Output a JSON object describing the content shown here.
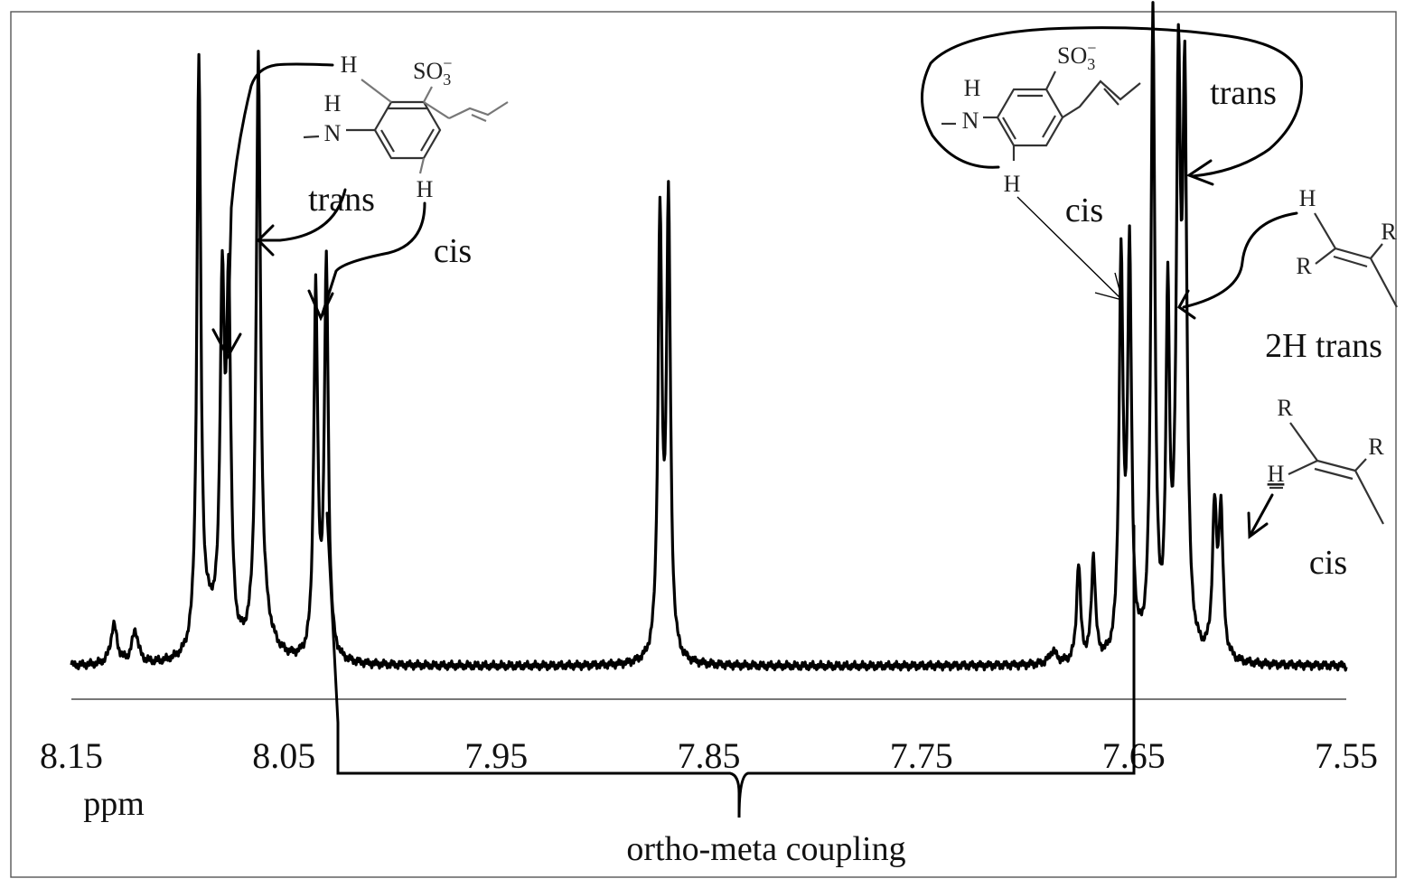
{
  "chart_data": {
    "type": "line",
    "xlabel": "ppm",
    "xlim": [
      8.15,
      7.55
    ],
    "x_reversed": true,
    "x_ticks": [
      "8.15",
      "8.05",
      "7.95",
      "7.85",
      "7.75",
      "7.65",
      "7.55"
    ],
    "y_axis_shown": false,
    "grid": false,
    "baseline": 0.02,
    "peaks": [
      {
        "x": 8.13,
        "h": 0.06,
        "w": 0.0018
      },
      {
        "x": 8.12,
        "h": 0.05,
        "w": 0.0018
      },
      {
        "x": 8.09,
        "h": 0.9,
        "w": 0.0011
      },
      {
        "x": 8.085,
        "h": 0.05,
        "w": 0.0045
      },
      {
        "x": 8.079,
        "h": 0.53,
        "w": 0.0012
      },
      {
        "x": 8.076,
        "h": 0.53,
        "w": 0.0012
      },
      {
        "x": 8.062,
        "h": 0.88,
        "w": 0.0012
      },
      {
        "x": 8.06,
        "h": 0.05,
        "w": 0.0055
      },
      {
        "x": 8.035,
        "h": 0.56,
        "w": 0.0011
      },
      {
        "x": 8.03,
        "h": 0.6,
        "w": 0.0011
      },
      {
        "x": 7.873,
        "h": 0.67,
        "w": 0.0011
      },
      {
        "x": 7.869,
        "h": 0.69,
        "w": 0.0011
      },
      {
        "x": 7.688,
        "h": 0.02,
        "w": 0.002
      },
      {
        "x": 7.676,
        "h": 0.15,
        "w": 0.0011
      },
      {
        "x": 7.669,
        "h": 0.16,
        "w": 0.0011
      },
      {
        "x": 7.656,
        "h": 0.6,
        "w": 0.0011
      },
      {
        "x": 7.652,
        "h": 0.61,
        "w": 0.0011
      },
      {
        "x": 7.641,
        "h": 0.98,
        "w": 0.0011
      },
      {
        "x": 7.634,
        "h": 0.53,
        "w": 0.001
      },
      {
        "x": 7.629,
        "h": 0.84,
        "w": 0.0012
      },
      {
        "x": 7.626,
        "h": 0.82,
        "w": 0.0012
      },
      {
        "x": 7.612,
        "h": 0.22,
        "w": 0.0012
      },
      {
        "x": 7.609,
        "h": 0.22,
        "w": 0.0012
      }
    ]
  },
  "annotations": {
    "trans_left": "trans",
    "cis_left": "cis",
    "trans_right": "trans",
    "cis_right_top": "cis",
    "two_h_trans": "2H trans",
    "cis_right_bottom": "cis",
    "ortho_meta": "ortho-meta coupling"
  },
  "molecules": {
    "H": "H",
    "N": "N",
    "R": "R",
    "so3": "SO",
    "so3_sub": "3",
    "so3_sup": "−"
  }
}
